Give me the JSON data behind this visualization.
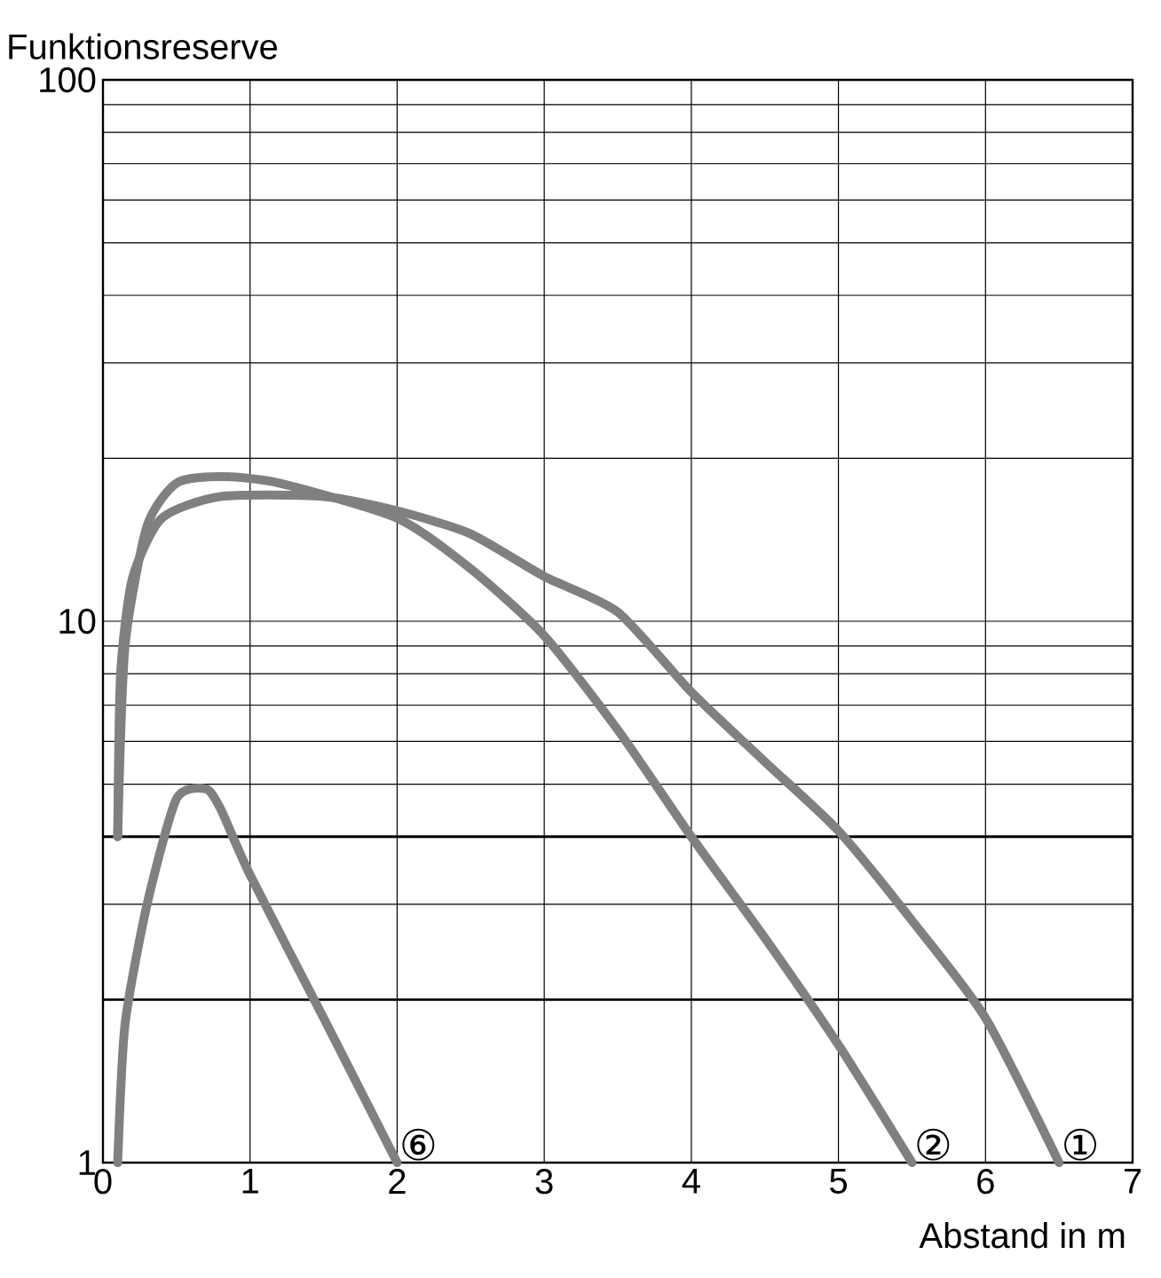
{
  "chart_data": {
    "type": "line",
    "xlabel": "Abstand in m",
    "ylabel": "Funktionsreserve",
    "log": "y",
    "xlim": [
      0,
      7
    ],
    "ylim": [
      1,
      100
    ],
    "xticks": [
      0,
      1,
      2,
      3,
      4,
      5,
      6,
      7
    ],
    "yticks": [
      1,
      10,
      100
    ],
    "grid": true,
    "marker": "none",
    "line_style": "solid",
    "ref_lines": [
      {
        "axis": "y",
        "value": 2,
        "color": "#000000"
      },
      {
        "axis": "y",
        "value": 4,
        "color": "#000000"
      }
    ],
    "series": [
      {
        "name": "①",
        "color": "#808080",
        "x": [
          0.1,
          0.12,
          0.2,
          0.4,
          0.8,
          1.5,
          2.0,
          2.5,
          3.0,
          3.5,
          4.0,
          4.5,
          5.0,
          5.5,
          6.0,
          6.5
        ],
        "values": [
          4,
          8,
          12,
          15.5,
          17,
          17,
          16,
          14.5,
          12.1,
          10.4,
          7.4,
          5.5,
          4.1,
          2.8,
          1.85,
          1
        ]
      },
      {
        "name": "②",
        "color": "#808080",
        "x": [
          0.1,
          0.15,
          0.3,
          0.5,
          0.8,
          1.2,
          2.0,
          2.5,
          3.0,
          3.5,
          4.0,
          4.5,
          5.0,
          5.5
        ],
        "values": [
          4,
          9,
          15,
          18,
          18.5,
          18,
          15.5,
          12.5,
          9.4,
          6.3,
          4.0,
          2.6,
          1.65,
          1
        ]
      },
      {
        "name": "⑥",
        "color": "#808080",
        "x": [
          0.1,
          0.15,
          0.3,
          0.5,
          0.7,
          0.8,
          1.0,
          1.5,
          2.0
        ],
        "values": [
          1,
          1.8,
          3,
          4.7,
          4.9,
          4.5,
          3.4,
          1.85,
          1
        ]
      }
    ]
  }
}
